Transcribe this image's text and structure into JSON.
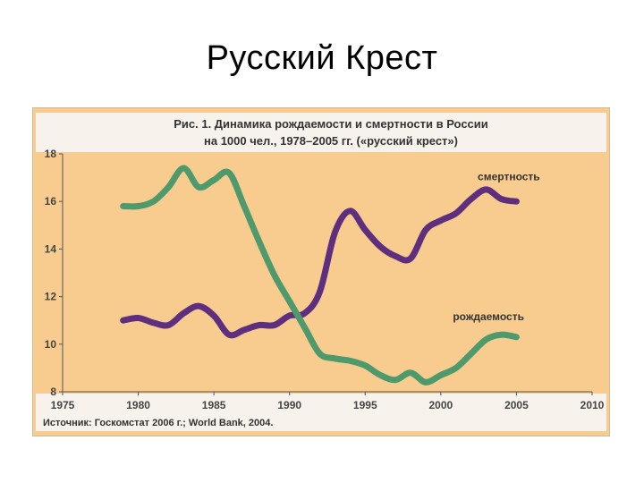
{
  "slide": {
    "title": "Русский Крест"
  },
  "chart_data": {
    "type": "line",
    "title": "Рис. 1. Динамика рождаемости и смертности в России",
    "subtitle": "на 1000 чел., 1978–2005 гг. («русский крест»)",
    "source": "Источник: Госкомстат 2006 г.; World Bank, 2004.",
    "xlim": [
      1975,
      2010
    ],
    "ylim": [
      8,
      18
    ],
    "xticks": [
      "1975",
      "1980",
      "1985",
      "1990",
      "1995",
      "2000",
      "2005",
      "2010"
    ],
    "yticks": [
      "8",
      "10",
      "12",
      "14",
      "16",
      "18"
    ],
    "grid": false,
    "colors": {
      "background": "#f8cc8e",
      "frame": "#f7f3ec",
      "mortality": "#5e2f7e",
      "birth": "#4f9a6c"
    },
    "series": [
      {
        "name": "смертность",
        "x": [
          1979,
          1980,
          1981,
          1982,
          1983,
          1984,
          1985,
          1986,
          1987,
          1988,
          1989,
          1990,
          1991,
          1992,
          1993,
          1994,
          1995,
          1996,
          1997,
          1998,
          1999,
          2000,
          2001,
          2002,
          2003,
          2004,
          2005
        ],
        "values": [
          11.0,
          11.1,
          10.9,
          10.8,
          11.3,
          11.6,
          11.2,
          10.4,
          10.6,
          10.8,
          10.8,
          11.2,
          11.3,
          12.2,
          14.7,
          15.6,
          14.8,
          14.1,
          13.7,
          13.6,
          14.8,
          15.2,
          15.5,
          16.1,
          16.5,
          16.1,
          16.0
        ]
      },
      {
        "name": "рождаемость",
        "x": [
          1979,
          1980,
          1981,
          1982,
          1983,
          1984,
          1985,
          1986,
          1987,
          1988,
          1989,
          1990,
          1991,
          1992,
          1993,
          1994,
          1995,
          1996,
          1997,
          1998,
          1999,
          2000,
          2001,
          2002,
          2003,
          2004,
          2005
        ],
        "values": [
          15.8,
          15.8,
          16.0,
          16.6,
          17.4,
          16.6,
          16.9,
          17.2,
          15.8,
          14.3,
          12.9,
          11.8,
          10.7,
          9.6,
          9.4,
          9.3,
          9.1,
          8.7,
          8.5,
          8.8,
          8.4,
          8.7,
          9.0,
          9.6,
          10.2,
          10.4,
          10.3
        ]
      }
    ]
  }
}
